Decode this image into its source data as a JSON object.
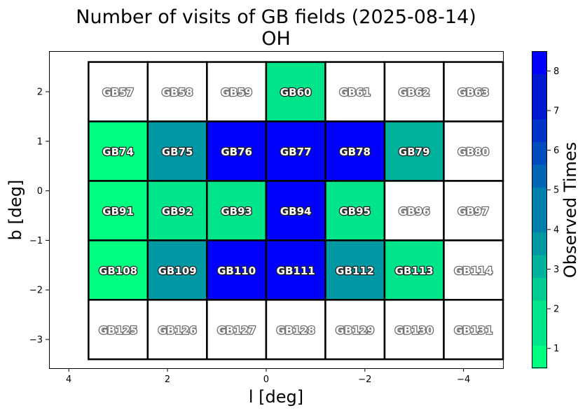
{
  "chart_data": {
    "type": "heatmap",
    "title": "Number of visits of GB fields (2025-08-14)",
    "subtitle": "OH",
    "xlabel": "l [deg]",
    "ylabel": "b [deg]",
    "colorbar_label": "Observed Times",
    "x_ticks": [
      "4",
      "2",
      "0",
      "−2",
      "−4"
    ],
    "y_ticks": [
      "2",
      "1",
      "0",
      "−1",
      "−2",
      "−3"
    ],
    "colorbar_ticks": [
      "1",
      "2",
      "3",
      "4",
      "5",
      "6",
      "7",
      "8"
    ],
    "colorbar_range": [
      1,
      8
    ],
    "colormap": [
      "#00ff80",
      "#00e589",
      "#00cc92",
      "#00b29b",
      "#0099a3",
      "#0080ac",
      "#0066b5",
      "#004cbe",
      "#0033c7",
      "#0019d0",
      "#0000ff"
    ],
    "x_range": [
      4.4,
      -4.8
    ],
    "y_range": [
      -3.58,
      2.82
    ],
    "cells": [
      {
        "label": "GB57",
        "l": 3.0,
        "b": 2.0,
        "visits": 0
      },
      {
        "label": "GB58",
        "l": 1.8,
        "b": 2.0,
        "visits": 0
      },
      {
        "label": "GB59",
        "l": 0.6,
        "b": 2.0,
        "visits": 0
      },
      {
        "label": "GB60",
        "l": -0.6,
        "b": 2.0,
        "visits": 2
      },
      {
        "label": "GB61",
        "l": -1.8,
        "b": 2.0,
        "visits": 0
      },
      {
        "label": "GB62",
        "l": -3.0,
        "b": 2.0,
        "visits": 0
      },
      {
        "label": "GB63",
        "l": -4.2,
        "b": 2.0,
        "visits": 0
      },
      {
        "label": "GB74",
        "l": 3.0,
        "b": 0.8,
        "visits": 1
      },
      {
        "label": "GB75",
        "l": 1.8,
        "b": 0.8,
        "visits": 4
      },
      {
        "label": "GB76",
        "l": 0.6,
        "b": 0.8,
        "visits": 8
      },
      {
        "label": "GB77",
        "l": -0.6,
        "b": 0.8,
        "visits": 8
      },
      {
        "label": "GB78",
        "l": -1.8,
        "b": 0.8,
        "visits": 8
      },
      {
        "label": "GB79",
        "l": -3.0,
        "b": 0.8,
        "visits": 3
      },
      {
        "label": "GB80",
        "l": -4.2,
        "b": 0.8,
        "visits": 0
      },
      {
        "label": "GB91",
        "l": 3.0,
        "b": -0.4,
        "visits": 1
      },
      {
        "label": "GB92",
        "l": 1.8,
        "b": -0.4,
        "visits": 2
      },
      {
        "label": "GB93",
        "l": 0.6,
        "b": -0.4,
        "visits": 2
      },
      {
        "label": "GB94",
        "l": -0.6,
        "b": -0.4,
        "visits": 8
      },
      {
        "label": "GB95",
        "l": -1.8,
        "b": -0.4,
        "visits": 2
      },
      {
        "label": "GB96",
        "l": -3.0,
        "b": -0.4,
        "visits": 0
      },
      {
        "label": "GB97",
        "l": -4.2,
        "b": -0.4,
        "visits": 0
      },
      {
        "label": "GB108",
        "l": 3.0,
        "b": -1.6,
        "visits": 1
      },
      {
        "label": "GB109",
        "l": 1.8,
        "b": -1.6,
        "visits": 4
      },
      {
        "label": "GB110",
        "l": 0.6,
        "b": -1.6,
        "visits": 8
      },
      {
        "label": "GB111",
        "l": -0.6,
        "b": -1.6,
        "visits": 8
      },
      {
        "label": "GB112",
        "l": -1.8,
        "b": -1.6,
        "visits": 4
      },
      {
        "label": "GB113",
        "l": -3.0,
        "b": -1.6,
        "visits": 2
      },
      {
        "label": "GB114",
        "l": -4.2,
        "b": -1.6,
        "visits": 0
      },
      {
        "label": "GB125",
        "l": 3.0,
        "b": -2.8,
        "visits": 0
      },
      {
        "label": "GB126",
        "l": 1.8,
        "b": -2.8,
        "visits": 0
      },
      {
        "label": "GB127",
        "l": 0.6,
        "b": -2.8,
        "visits": 0
      },
      {
        "label": "GB128",
        "l": -0.6,
        "b": -2.8,
        "visits": 0
      },
      {
        "label": "GB129",
        "l": -1.8,
        "b": -2.8,
        "visits": 0
      },
      {
        "label": "GB130",
        "l": -3.0,
        "b": -2.8,
        "visits": 0
      },
      {
        "label": "GB131",
        "l": -4.2,
        "b": -2.8,
        "visits": 0
      }
    ]
  }
}
